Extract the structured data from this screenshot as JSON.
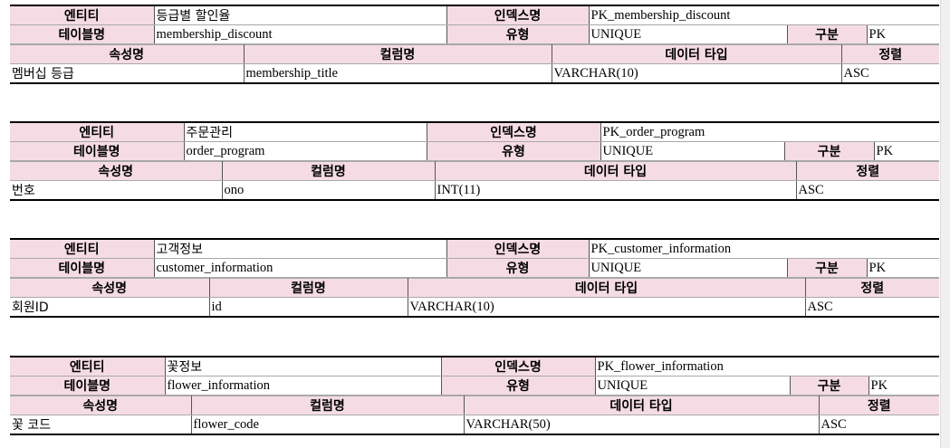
{
  "labels": {
    "entity": "엔티티",
    "index_name": "인덱스명",
    "table_name": "테이블명",
    "type": "유형",
    "division": "구분",
    "attribute_name": "속성명",
    "column_name": "컬럼명",
    "data_type": "데이터 타입",
    "sort": "정렬"
  },
  "tables": [
    {
      "entity": "등급별 할인율",
      "index_name": "PK_membership_discount",
      "table_name": "membership_discount",
      "type": "UNIQUE",
      "division": "PK",
      "row": {
        "attribute": "멤버십 등급",
        "column": "membership_title",
        "data_type": "VARCHAR(10)",
        "sort": "ASC"
      }
    },
    {
      "entity": "주문관리",
      "index_name": "PK_order_program",
      "table_name": "order_program",
      "type": "UNIQUE",
      "division": "PK",
      "row": {
        "attribute": "번호",
        "column": "ono",
        "data_type": "INT(11)",
        "sort": "ASC"
      }
    },
    {
      "entity": "고객정보",
      "index_name": "PK_customer_information",
      "table_name": "customer_information",
      "type": "UNIQUE",
      "division": "PK",
      "row": {
        "attribute": "회원ID",
        "column": "id",
        "data_type": "VARCHAR(10)",
        "sort": "ASC"
      }
    },
    {
      "entity": "꽃정보",
      "index_name": "PK_flower_information",
      "table_name": "flower_information",
      "type": "UNIQUE",
      "division": "PK",
      "row": {
        "attribute": "꽃 코드",
        "column": "flower_code",
        "data_type": "VARCHAR(50)",
        "sort": "ASC"
      }
    }
  ]
}
